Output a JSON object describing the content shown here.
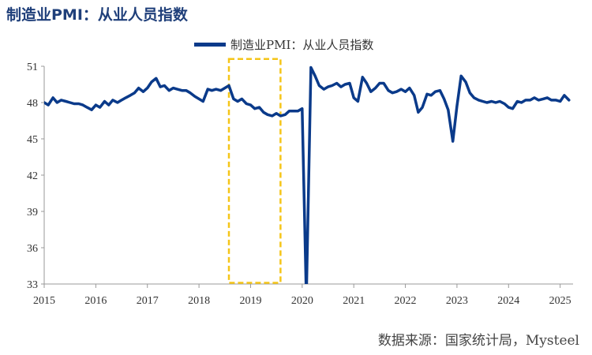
{
  "title": "制造业PMI：从业人员指数",
  "source": "数据来源：国家统计局，Mysteel",
  "colors": {
    "line": "#0a3a8a",
    "highlight_box": "#f5c518",
    "axis": "#999999"
  },
  "chart_data": {
    "type": "line",
    "title": "制造业PMI：从业人员指数",
    "xlabel": "",
    "ylabel": "",
    "xlim": [
      2015.0,
      2025.25
    ],
    "ylim": [
      33,
      51
    ],
    "yticks": [
      33,
      36,
      39,
      42,
      45,
      48,
      51
    ],
    "xticks": [
      "2015",
      "2016",
      "2017",
      "2018",
      "2019",
      "2020",
      "2021",
      "2022",
      "2023",
      "2024",
      "2025"
    ],
    "grid": false,
    "legend_position": "top-center",
    "highlight": {
      "x_range": [
        2018.58,
        2019.58
      ],
      "y_range": [
        33.1,
        51.6
      ],
      "style": "dashed"
    },
    "series": [
      {
        "name": "制造业PMI：从业人员指数",
        "x": [
          2015.0,
          2015.08,
          2015.17,
          2015.25,
          2015.33,
          2015.42,
          2015.5,
          2015.58,
          2015.67,
          2015.75,
          2015.83,
          2015.92,
          2016.0,
          2016.08,
          2016.17,
          2016.25,
          2016.33,
          2016.42,
          2016.5,
          2016.58,
          2016.67,
          2016.75,
          2016.83,
          2016.92,
          2017.0,
          2017.08,
          2017.17,
          2017.25,
          2017.33,
          2017.42,
          2017.5,
          2017.58,
          2017.67,
          2017.75,
          2017.83,
          2017.92,
          2018.0,
          2018.08,
          2018.17,
          2018.25,
          2018.33,
          2018.42,
          2018.5,
          2018.58,
          2018.67,
          2018.75,
          2018.83,
          2018.92,
          2019.0,
          2019.08,
          2019.17,
          2019.25,
          2019.33,
          2019.42,
          2019.5,
          2019.58,
          2019.67,
          2019.75,
          2019.83,
          2019.92,
          2020.0,
          2020.08,
          2020.17,
          2020.25,
          2020.33,
          2020.42,
          2020.5,
          2020.58,
          2020.67,
          2020.75,
          2020.83,
          2020.92,
          2021.0,
          2021.08,
          2021.17,
          2021.25,
          2021.33,
          2021.42,
          2021.5,
          2021.58,
          2021.67,
          2021.75,
          2021.83,
          2021.92,
          2022.0,
          2022.08,
          2022.17,
          2022.25,
          2022.33,
          2022.42,
          2022.5,
          2022.58,
          2022.67,
          2022.75,
          2022.83,
          2022.92,
          2023.0,
          2023.08,
          2023.17,
          2023.25,
          2023.33,
          2023.42,
          2023.5,
          2023.58,
          2023.67,
          2023.75,
          2023.83,
          2023.92,
          2024.0,
          2024.08,
          2024.17,
          2024.25,
          2024.33,
          2024.42,
          2024.5,
          2024.58,
          2024.67,
          2024.75,
          2024.83,
          2024.92,
          2025.0,
          2025.08,
          2025.17
        ],
        "values": [
          48.0,
          47.8,
          48.4,
          48.0,
          48.2,
          48.1,
          48.0,
          47.9,
          47.9,
          47.8,
          47.6,
          47.4,
          47.8,
          47.6,
          48.1,
          47.8,
          48.2,
          48.0,
          48.2,
          48.4,
          48.6,
          48.8,
          49.2,
          48.9,
          49.2,
          49.7,
          50.0,
          49.3,
          49.4,
          49.0,
          49.2,
          49.1,
          49.0,
          49.0,
          48.8,
          48.5,
          48.3,
          48.1,
          49.1,
          49.0,
          49.1,
          49.0,
          49.2,
          49.4,
          48.3,
          48.1,
          48.3,
          47.9,
          47.8,
          47.5,
          47.6,
          47.2,
          47.0,
          46.9,
          47.1,
          46.9,
          47.0,
          47.3,
          47.3,
          47.3,
          47.5,
          31.8,
          50.9,
          50.2,
          49.4,
          49.1,
          49.3,
          49.4,
          49.6,
          49.3,
          49.5,
          49.6,
          48.4,
          48.1,
          50.1,
          49.6,
          48.9,
          49.2,
          49.6,
          49.6,
          49.0,
          48.8,
          48.9,
          49.1,
          48.9,
          49.2,
          48.6,
          47.2,
          47.6,
          48.7,
          48.6,
          48.9,
          49.0,
          48.3,
          47.4,
          44.8,
          47.7,
          50.2,
          49.7,
          48.8,
          48.4,
          48.2,
          48.1,
          48.0,
          48.1,
          48.0,
          48.1,
          47.9,
          47.6,
          47.5,
          48.1,
          48.0,
          48.2,
          48.2,
          48.4,
          48.2,
          48.3,
          48.4,
          48.2,
          48.2,
          48.1,
          48.6,
          48.2
        ]
      }
    ]
  }
}
